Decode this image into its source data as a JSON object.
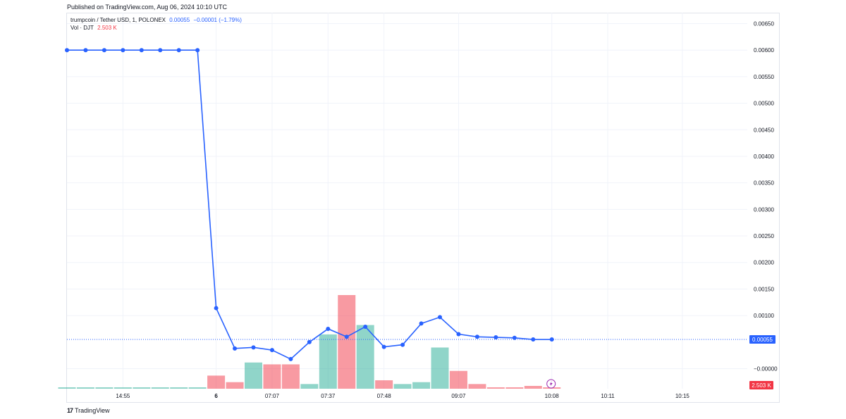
{
  "header": {
    "published": "Published on TradingView.com, Aug 06, 2024 10:10 UTC"
  },
  "legend": {
    "symbol": "trumpcoin / Tether USD, 1, POLONEX",
    "last_price": "0.00055",
    "change": "−0.00001 (−1.79%)",
    "volume_label": "Vol · DJT",
    "volume_value": "2.503 K"
  },
  "footer": {
    "brand": "TradingView",
    "logo": "17"
  },
  "colors": {
    "line": "#2962ff",
    "volume_up": "#22ab94",
    "volume_down": "#f23645",
    "grid": "#f0f3fa",
    "price_tag": "#2962ff",
    "volume_tag": "#f23645"
  },
  "chart_data": {
    "type": "line",
    "price_axis": {
      "ticks": [
        "0.00650",
        "0.00600",
        "0.00550",
        "0.00500",
        "0.00450",
        "0.00400",
        "0.00350",
        "0.00300",
        "0.00250",
        "0.00200",
        "0.00150",
        "0.00100",
        "−0.00000"
      ],
      "tick_values": [
        0.0065,
        0.006,
        0.0055,
        0.005,
        0.0045,
        0.004,
        0.0035,
        0.003,
        0.0025,
        0.002,
        0.0015,
        0.001,
        0.0
      ],
      "ylim": [
        0.0,
        0.0065
      ],
      "last_value_label": "0.00055",
      "volume_label": "2.503 K"
    },
    "time_axis": {
      "labels": [
        "14:55",
        "6",
        "07:07",
        "07:37",
        "07:48",
        "09:07",
        "10:08",
        "10:11",
        "10:15"
      ],
      "label_positions": [
        3,
        8,
        11,
        14,
        17,
        21,
        26,
        29,
        33
      ]
    },
    "series": [
      {
        "name": "trumpcoin / Tether USD",
        "values": [
          0.006,
          0.006,
          0.006,
          0.006,
          0.006,
          0.006,
          0.006,
          0.006,
          0.00114,
          0.00038,
          0.0004,
          0.00035,
          0.00018,
          0.0005,
          0.00075,
          0.0006,
          0.00079,
          0.00041,
          0.00045,
          0.00085,
          0.00097,
          0.00065,
          0.0006,
          0.00059,
          0.00058,
          0.00055,
          0.00055
        ]
      }
    ],
    "volume": {
      "values": [
        0.015,
        0.015,
        0.015,
        0.015,
        0.015,
        0.015,
        0.015,
        0.015,
        0.14,
        0.07,
        0.28,
        0.26,
        0.26,
        0.05,
        0.58,
        1.0,
        0.68,
        0.09,
        0.05,
        0.07,
        0.44,
        0.19,
        0.05,
        0.015,
        0.015,
        0.03,
        0.015
      ],
      "direction": [
        "up",
        "up",
        "up",
        "up",
        "up",
        "up",
        "up",
        "up",
        "down",
        "down",
        "up",
        "down",
        "down",
        "up",
        "up",
        "down",
        "up",
        "down",
        "up",
        "up",
        "up",
        "down",
        "down",
        "down",
        "down",
        "down",
        "down"
      ]
    }
  }
}
